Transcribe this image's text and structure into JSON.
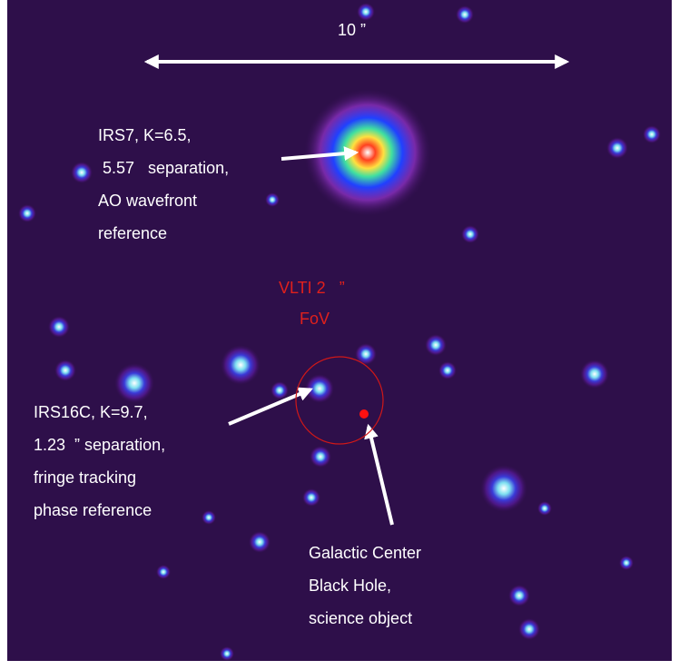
{
  "scale_bar": {
    "label": "10 ”"
  },
  "annotations": {
    "irs7": [
      "IRS7, K=6.5,",
      "5.57   separation,",
      "AO wavefront",
      "reference"
    ],
    "fov": [
      "VLTI 2   ”",
      "FoV"
    ],
    "irs16c": [
      "IRS16C, K=9.7,",
      "1.23  ” separation,",
      "fringe tracking",
      "phase reference"
    ],
    "black_hole": [
      "Galactic Center",
      "Black Hole,",
      "science object"
    ]
  }
}
